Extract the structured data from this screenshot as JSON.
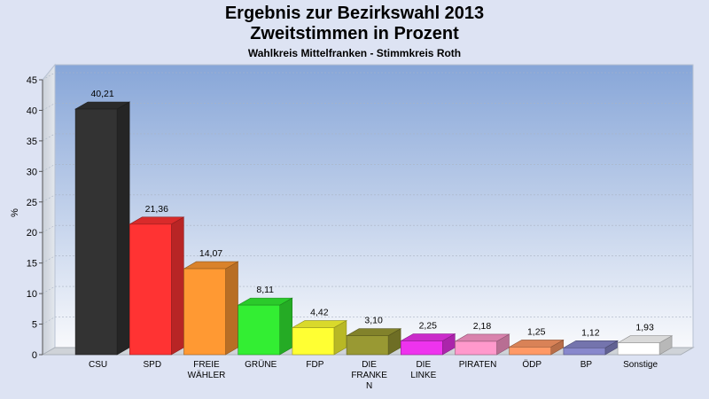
{
  "chart_data": {
    "type": "bar",
    "title": "Ergebnis zur Bezirkswahl 2013",
    "subtitle": "Zweitstimmen in Prozent",
    "subsubtitle": "Wahlkreis Mittelfranken - Stimmkreis Roth",
    "ylabel": "%",
    "ylim": [
      0,
      45
    ],
    "yticks": [
      "0",
      "5",
      "10",
      "15",
      "20",
      "25",
      "30",
      "35",
      "40",
      "45"
    ],
    "categories": [
      [
        "CSU"
      ],
      [
        "SPD"
      ],
      [
        "FREIE",
        "WÄHLER"
      ],
      [
        "GRÜNE"
      ],
      [
        "FDP"
      ],
      [
        "DIE",
        "FRANKE",
        "N"
      ],
      [
        "DIE",
        "LINKE"
      ],
      [
        "PIRATEN"
      ],
      [
        "ÖDP"
      ],
      [
        "BP"
      ],
      [
        "Sonstige"
      ]
    ],
    "values": [
      40.21,
      21.36,
      14.07,
      8.11,
      4.42,
      3.1,
      2.25,
      2.18,
      1.25,
      1.12,
      1.93
    ],
    "labels": [
      "40,21",
      "21,36",
      "14,07",
      "8,11",
      "4,42",
      "3,10",
      "2,25",
      "2,18",
      "1,25",
      "1,12",
      "1,93"
    ],
    "colors": [
      "#333333",
      "#ff3333",
      "#ff9933",
      "#33ee33",
      "#ffff33",
      "#999933",
      "#ee33ee",
      "#ff99cc",
      "#ff9966",
      "#8888cc",
      "#ffffff"
    ],
    "grid": true,
    "legend": "none"
  }
}
